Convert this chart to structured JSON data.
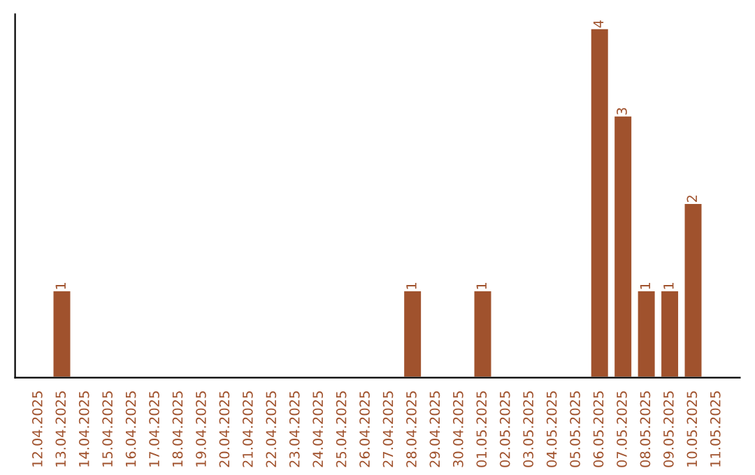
{
  "chart_data": {
    "type": "bar",
    "categories": [
      "12.04.2025",
      "13.04.2025",
      "14.04.2025",
      "15.04.2025",
      "16.04.2025",
      "17.04.2025",
      "18.04.2025",
      "19.04.2025",
      "20.04.2025",
      "21.04.2025",
      "22.04.2025",
      "23.04.2025",
      "24.04.2025",
      "25.04.2025",
      "26.04.2025",
      "27.04.2025",
      "28.04.2025",
      "29.04.2025",
      "30.04.2025",
      "01.05.2025",
      "02.05.2025",
      "03.05.2025",
      "04.05.2025",
      "05.05.2025",
      "06.05.2025",
      "07.05.2025",
      "08.05.2025",
      "09.05.2025",
      "10.05.2025",
      "11.05.2025"
    ],
    "values": [
      null,
      1,
      null,
      null,
      null,
      null,
      null,
      null,
      null,
      null,
      null,
      null,
      null,
      null,
      null,
      null,
      1,
      null,
      null,
      1,
      null,
      null,
      null,
      null,
      4,
      3,
      1,
      1,
      2,
      null
    ],
    "value_labels": [
      null,
      "1",
      null,
      null,
      null,
      null,
      null,
      null,
      null,
      null,
      null,
      null,
      null,
      null,
      null,
      null,
      "1",
      null,
      null,
      "1",
      null,
      null,
      null,
      null,
      "4",
      "3",
      "1",
      "1",
      "2",
      null
    ],
    "color": "#a0522d",
    "tick_labels": "x",
    "grid": false,
    "legend": false
  }
}
